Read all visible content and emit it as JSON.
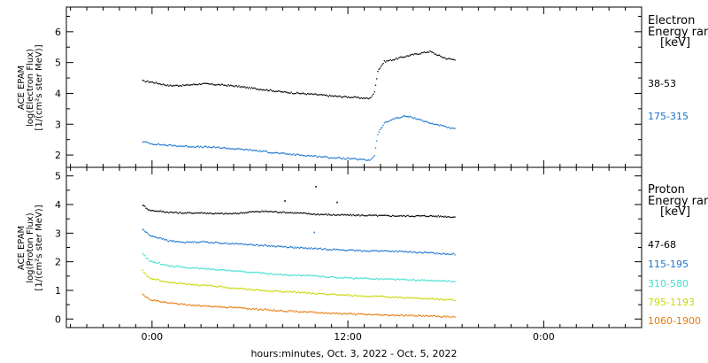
{
  "chart_data": [
    {
      "type": "scatter",
      "panel": "electron",
      "ylabel_lines": [
        "ACE EPAM",
        "log(Electron Flux)",
        "[1/(cm²s ster MeV)]"
      ],
      "legend_title": [
        "Electron",
        "Energy ran",
        "[keV]"
      ],
      "ylim": [
        1.6,
        6.8
      ],
      "yticks": [
        "2",
        "3",
        "4",
        "5",
        "6"
      ],
      "series": [
        {
          "name": "38-53",
          "color": "#000000",
          "x": [
            -0.6,
            0,
            1,
            2,
            3,
            4,
            5,
            6,
            7,
            8,
            9,
            10,
            11,
            12,
            13.3,
            13.6,
            13.8,
            14.2,
            14.8,
            15.5,
            16.2,
            17.0,
            17.5,
            18.0,
            18.6
          ],
          "y": [
            4.42,
            4.38,
            4.27,
            4.28,
            4.33,
            4.3,
            4.26,
            4.19,
            4.13,
            4.06,
            4.02,
            3.98,
            3.93,
            3.9,
            3.85,
            4.05,
            4.75,
            5.05,
            5.12,
            5.22,
            5.3,
            5.38,
            5.25,
            5.15,
            5.1
          ]
        },
        {
          "name": "175-315",
          "color": "#1874cd",
          "x": [
            -0.6,
            0,
            1,
            2,
            3,
            4,
            5,
            6,
            7,
            8,
            9,
            10,
            11,
            12,
            13.3,
            13.6,
            13.8,
            14.2,
            14.8,
            15.5,
            16.2,
            17.0,
            17.5,
            18.0,
            18.6
          ],
          "y": [
            2.45,
            2.38,
            2.33,
            2.3,
            2.28,
            2.26,
            2.22,
            2.18,
            2.12,
            2.06,
            2.02,
            1.98,
            1.93,
            1.9,
            1.85,
            2.0,
            2.7,
            3.05,
            3.2,
            3.28,
            3.2,
            3.05,
            3.0,
            2.92,
            2.85
          ]
        }
      ]
    },
    {
      "type": "scatter",
      "panel": "proton",
      "ylabel_lines": [
        "ACE EPAM",
        "log(Proton Flux)",
        "[1/(cm²s ster MeV)]"
      ],
      "legend_title": [
        "Proton",
        "Energy ran",
        "[keV]"
      ],
      "ylim": [
        -0.3,
        5.3
      ],
      "yticks": [
        "0",
        "1",
        "2",
        "3",
        "4",
        "5"
      ],
      "series": [
        {
          "name": "47-68",
          "color": "#000000",
          "x": [
            -0.6,
            -0.2,
            1,
            2,
            3,
            4,
            5,
            6,
            7,
            8,
            9,
            10,
            11,
            12,
            13,
            14,
            15,
            16,
            17,
            18,
            18.6
          ],
          "y": [
            4.0,
            3.82,
            3.75,
            3.72,
            3.73,
            3.7,
            3.7,
            3.76,
            3.78,
            3.75,
            3.72,
            3.68,
            3.66,
            3.65,
            3.64,
            3.63,
            3.62,
            3.62,
            3.62,
            3.6,
            3.58
          ]
        },
        {
          "name": "115-195",
          "color": "#1874cd",
          "x": [
            -0.6,
            -0.2,
            1,
            2,
            3,
            4,
            5,
            6,
            7,
            8,
            9,
            10,
            11,
            12,
            13,
            14,
            15,
            16,
            17,
            18,
            18.6
          ],
          "y": [
            3.15,
            2.95,
            2.75,
            2.7,
            2.72,
            2.68,
            2.65,
            2.62,
            2.58,
            2.55,
            2.5,
            2.48,
            2.45,
            2.42,
            2.4,
            2.4,
            2.38,
            2.35,
            2.33,
            2.3,
            2.28
          ]
        },
        {
          "name": "310-580",
          "color": "#40e0d0",
          "x": [
            -0.6,
            -0.2,
            1,
            2,
            3,
            4,
            5,
            6,
            7,
            8,
            9,
            10,
            11,
            12,
            13,
            14,
            15,
            16,
            17,
            18,
            18.6
          ],
          "y": [
            2.3,
            2.05,
            1.88,
            1.82,
            1.78,
            1.75,
            1.7,
            1.66,
            1.6,
            1.57,
            1.55,
            1.52,
            1.48,
            1.45,
            1.43,
            1.42,
            1.4,
            1.38,
            1.36,
            1.34,
            1.32
          ]
        },
        {
          "name": "795-1193",
          "color": "#c8d800",
          "x": [
            -0.6,
            -0.2,
            1,
            2,
            3,
            4,
            5,
            6,
            7,
            8,
            9,
            10,
            11,
            12,
            13,
            14,
            15,
            16,
            17,
            18,
            18.6
          ],
          "y": [
            1.7,
            1.45,
            1.3,
            1.25,
            1.2,
            1.15,
            1.1,
            1.05,
            1.0,
            0.98,
            0.95,
            0.9,
            0.88,
            0.85,
            0.82,
            0.8,
            0.78,
            0.75,
            0.72,
            0.7,
            0.68
          ]
        },
        {
          "name": "1060-1900",
          "color": "#e87a0c",
          "x": [
            -0.6,
            -0.2,
            1,
            2,
            3,
            4,
            5,
            6,
            7,
            8,
            9,
            10,
            11,
            12,
            13,
            14,
            15,
            16,
            17,
            18,
            18.6
          ],
          "y": [
            0.9,
            0.7,
            0.58,
            0.52,
            0.48,
            0.45,
            0.42,
            0.38,
            0.34,
            0.3,
            0.28,
            0.25,
            0.22,
            0.2,
            0.18,
            0.16,
            0.15,
            0.14,
            0.12,
            0.1,
            0.08
          ]
        }
      ]
    }
  ],
  "x_axis": {
    "unit": "hours",
    "xlim": [
      -5.25,
      30.0
    ],
    "ticks": [
      0,
      12,
      24
    ],
    "tick_labels": [
      "0:00",
      "12:00",
      "0:00"
    ],
    "label": "hours:minutes, Oct.  3, 2022 - Oct.  5, 2022"
  },
  "spikes": [
    {
      "x": 10.0,
      "y": 4.65,
      "color": "#000000"
    },
    {
      "x": 9.9,
      "y": 3.05,
      "color": "#1874cd"
    },
    {
      "x": 8.1,
      "y": 4.15,
      "color": "#000000"
    },
    {
      "x": 11.3,
      "y": 4.1,
      "color": "#000000"
    }
  ]
}
